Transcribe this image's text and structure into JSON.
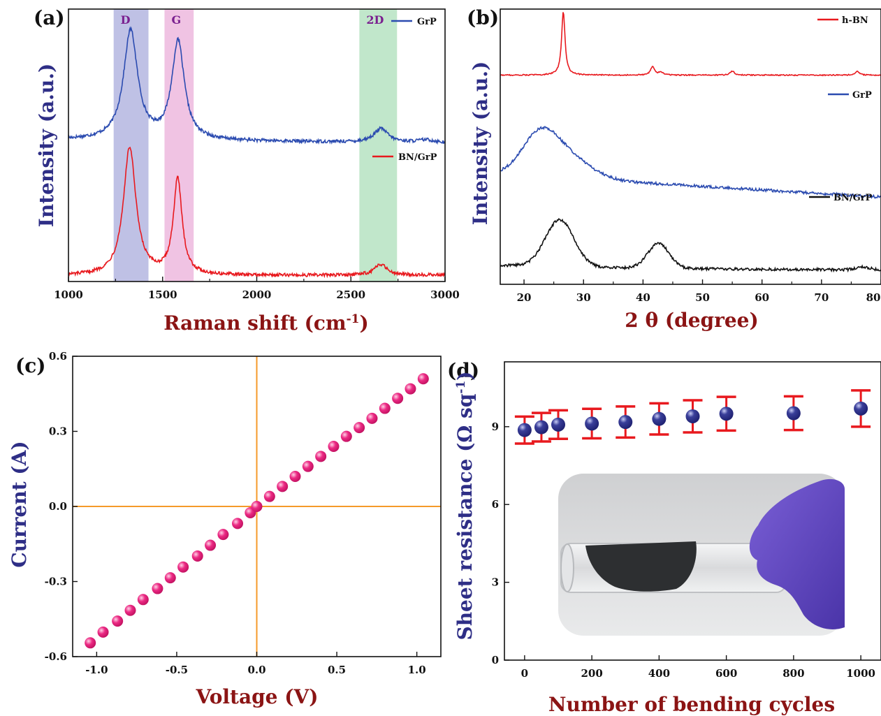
{
  "colors": {
    "red": "#e8191e",
    "blue": "#2b4bb0",
    "black": "#111111",
    "pink": "#ec2a84",
    "orange": "#f59a2a",
    "navy": "#1d1f6e",
    "errbar": "#e8191e",
    "band_d": "#b4b6e0",
    "band_g": "#edb8de",
    "band_2d": "#b6e3c2",
    "axis_title_x": "#8b1414",
    "axis_title_y": "#2e2e86"
  },
  "panels": [
    {
      "id": "a",
      "label": "(a)"
    },
    {
      "id": "b",
      "label": "(b)"
    },
    {
      "id": "c",
      "label": "(c)"
    },
    {
      "id": "d",
      "label": "(d)"
    }
  ],
  "chart_data": [
    {
      "panel": "(a)",
      "type": "line",
      "xlabel": "Raman shift (cm⁻¹)",
      "ylabel": "Intensity (a.u.)",
      "xlim": [
        1000,
        3000
      ],
      "xticks": [
        "1000",
        "1500",
        "2000",
        "2500",
        "3000"
      ],
      "bands": [
        {
          "label": "D",
          "range": [
            1240,
            1425
          ],
          "color": "band_d"
        },
        {
          "label": "G",
          "range": [
            1510,
            1665
          ],
          "color": "band_g"
        },
        {
          "label": "2D",
          "range": [
            2545,
            2745
          ],
          "color": "band_2d"
        }
      ],
      "series": [
        {
          "name": "GrP",
          "color": "blue",
          "baseline": 0.52,
          "peaks": [
            [
              1330,
              0.4,
              45
            ],
            [
              1582,
              0.36,
              40
            ],
            [
              2660,
              0.05,
              45
            ],
            [
              2900,
              0.01,
              60
            ]
          ]
        },
        {
          "name": "BN/GrP",
          "color": "red",
          "baseline": 0.02,
          "peaks": [
            [
              1325,
              0.47,
              40
            ],
            [
              1580,
              0.35,
              28
            ],
            [
              2660,
              0.04,
              40
            ]
          ]
        }
      ]
    },
    {
      "panel": "(b)",
      "type": "line",
      "xlabel": "2 θ (degree)",
      "ylabel": "Intensity (a.u.)",
      "xlim": [
        16,
        80
      ],
      "xticks": [
        "20",
        "30",
        "40",
        "50",
        "60",
        "70",
        "80"
      ],
      "series": [
        {
          "name": "h-BN",
          "color": "red",
          "baseline": 0.76,
          "peaks": [
            [
              26.6,
              0.23,
              0.35
            ],
            [
              41.6,
              0.03,
              0.4
            ],
            [
              43.0,
              0.01,
              0.5
            ],
            [
              55.0,
              0.015,
              0.4
            ],
            [
              76.0,
              0.015,
              0.4
            ]
          ]
        },
        {
          "name": "GrP",
          "color": "blue",
          "baseline": 0.4,
          "peaks": [
            [
              22.5,
              0.13,
              3.0
            ],
            [
              27.0,
              0.08,
              4.0
            ]
          ]
        },
        {
          "name": "BN/GrP",
          "color": "black",
          "baseline": 0.05,
          "peaks": [
            [
              26.0,
              0.17,
              2.4
            ],
            [
              42.6,
              0.09,
              1.8
            ],
            [
              77.0,
              0.01,
              1.2
            ]
          ]
        }
      ]
    },
    {
      "panel": "(c)",
      "type": "scatter",
      "xlabel": "Voltage (V)",
      "ylabel": "Current (A)",
      "xlim": [
        -1.15,
        1.15
      ],
      "ylim": [
        -0.6,
        0.6
      ],
      "xticks": [
        "-1.0",
        "-0.5",
        "0.0",
        "0.5",
        "1.0"
      ],
      "yticks": [
        "-0.6",
        "-0.3",
        "0.0",
        "0.3",
        "0.6"
      ],
      "x": [
        -1.04,
        -0.96,
        -0.87,
        -0.79,
        -0.71,
        -0.62,
        -0.54,
        -0.46,
        -0.37,
        -0.29,
        -0.21,
        -0.12,
        -0.04,
        0.0,
        0.08,
        0.16,
        0.24,
        0.32,
        0.4,
        0.48,
        0.56,
        0.64,
        0.72,
        0.8,
        0.88,
        0.96,
        1.04
      ],
      "y": [
        -0.545,
        -0.502,
        -0.458,
        -0.415,
        -0.372,
        -0.328,
        -0.285,
        -0.242,
        -0.198,
        -0.155,
        -0.112,
        -0.068,
        -0.025,
        0.0,
        0.04,
        0.08,
        0.12,
        0.16,
        0.2,
        0.24,
        0.28,
        0.315,
        0.352,
        0.392,
        0.432,
        0.47,
        0.51
      ]
    },
    {
      "panel": "(d)",
      "type": "scatter",
      "xlabel": "Number of bending cycles",
      "ylabel": "Sheet resistance (Ω sq⁻¹)",
      "xlim": [
        -60,
        1060
      ],
      "ylim": [
        0,
        11.5
      ],
      "xticks": [
        "0",
        "200",
        "400",
        "600",
        "800",
        "1000"
      ],
      "yticks": [
        "0",
        "3",
        "6",
        "9"
      ],
      "x": [
        0,
        50,
        100,
        200,
        300,
        400,
        500,
        600,
        800,
        1000
      ],
      "y": [
        8.87,
        8.98,
        9.08,
        9.12,
        9.18,
        9.3,
        9.4,
        9.5,
        9.52,
        9.7
      ],
      "err": [
        0.52,
        0.55,
        0.55,
        0.57,
        0.6,
        0.6,
        0.62,
        0.65,
        0.65,
        0.7
      ]
    }
  ]
}
